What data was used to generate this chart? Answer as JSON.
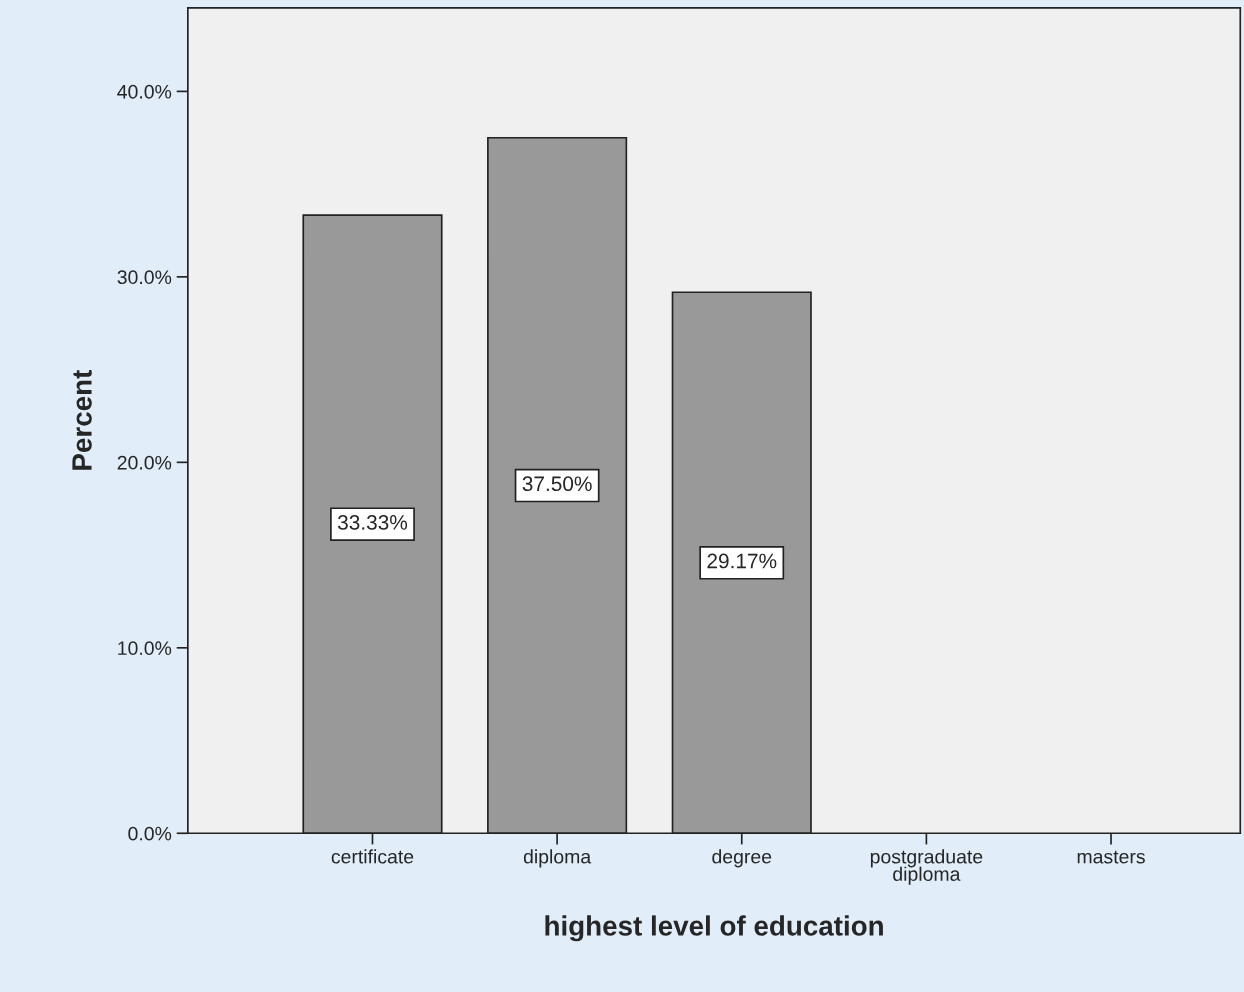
{
  "chart_data": {
    "type": "bar",
    "xlabel": "highest level of education",
    "ylabel": "Percent",
    "categories": [
      "certificate",
      "diploma",
      "degree",
      "postgraduate diploma",
      "masters"
    ],
    "values": [
      33.33,
      37.5,
      29.17,
      null,
      null
    ],
    "value_labels": [
      "33.33%",
      "37.50%",
      "29.17%",
      null,
      null
    ],
    "color": "#999999",
    "ylim": [
      0,
      44.5
    ],
    "yticks": [
      {
        "value": 0,
        "label": "0.0%"
      },
      {
        "value": 10,
        "label": "10.0%"
      },
      {
        "value": 20,
        "label": "20.0%"
      },
      {
        "value": 30,
        "label": "30.0%"
      },
      {
        "value": 40,
        "label": "40.0%"
      }
    ],
    "grid": false,
    "legend": false
  }
}
